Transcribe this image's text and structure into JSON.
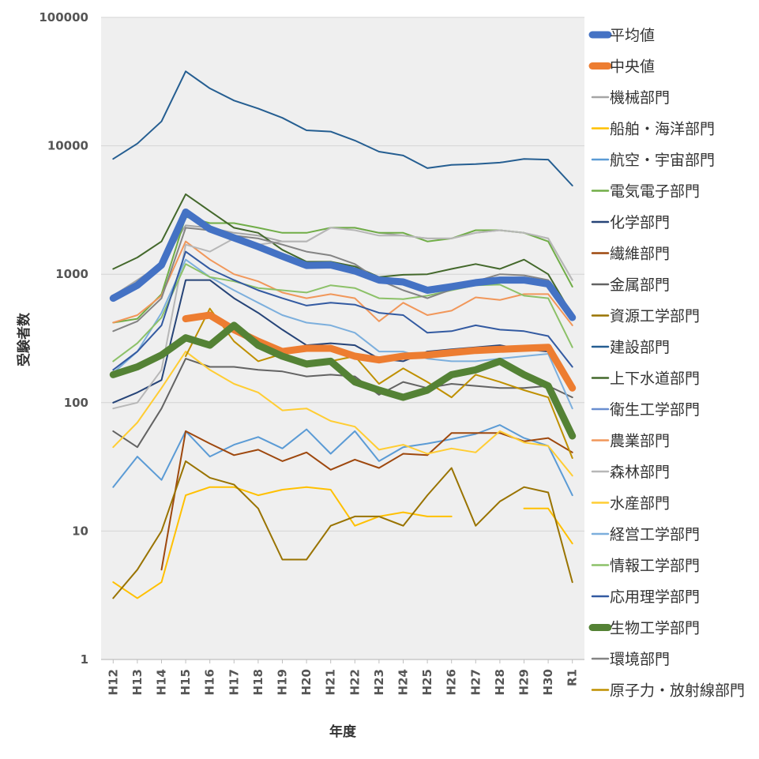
{
  "chart_data": {
    "type": "line",
    "title": "",
    "xlabel": "年度",
    "ylabel": "受験者数",
    "yscale": "log",
    "ylim": [
      1,
      100000
    ],
    "y_ticks": [
      "1",
      "10",
      "100",
      "1000",
      "10000",
      "100000"
    ],
    "grid": true,
    "legend_position": "right",
    "categories": [
      "H12",
      "H13",
      "H14",
      "H15",
      "H16",
      "H17",
      "H18",
      "H19",
      "H20",
      "H21",
      "H22",
      "H23",
      "H24",
      "H25",
      "H26",
      "H27",
      "H28",
      "H29",
      "H30",
      "R1"
    ],
    "series": [
      {
        "name": "平均値",
        "color": "#4472C4",
        "weight": "thick",
        "values": [
          650,
          820,
          1180,
          3050,
          2250,
          1920,
          1640,
          1380,
          1170,
          1180,
          1060,
          900,
          870,
          750,
          800,
          860,
          900,
          900,
          840,
          460
        ]
      },
      {
        "name": "中央値",
        "color": "#ED7D31",
        "weight": "thick",
        "values": [
          null,
          null,
          null,
          450,
          480,
          370,
          300,
          250,
          265,
          265,
          230,
          215,
          230,
          235,
          245,
          255,
          260,
          265,
          270,
          130
        ]
      },
      {
        "name": "機械部門",
        "color": "#A5A5A5",
        "weight": "thin",
        "values": [
          680,
          900,
          1200,
          2400,
          2300,
          2100,
          2000,
          1800,
          1800,
          2300,
          2300,
          2100,
          2000,
          1900,
          1900,
          2100,
          2200,
          2100,
          1900,
          900
        ]
      },
      {
        "name": "船舶・海洋部門",
        "color": "#FFC000",
        "weight": "thin",
        "values": [
          4,
          3,
          4,
          19,
          22,
          22,
          19,
          21,
          22,
          21,
          11,
          13,
          14,
          13,
          13,
          null,
          null,
          15,
          15,
          8
        ]
      },
      {
        "name": "航空・宇宙部門",
        "color": "#5B9BD5",
        "weight": "thin",
        "values": [
          22,
          38,
          25,
          60,
          38,
          47,
          54,
          44,
          62,
          40,
          60,
          35,
          45,
          48,
          52,
          57,
          67,
          53,
          46,
          19
        ]
      },
      {
        "name": "電気電子部門",
        "color": "#70AD47",
        "weight": "thin",
        "values": [
          420,
          450,
          700,
          2800,
          2500,
          2500,
          2300,
          2100,
          2100,
          2300,
          2300,
          2100,
          2100,
          1800,
          1900,
          2200,
          2200,
          2100,
          1800,
          800
        ]
      },
      {
        "name": "化学部門",
        "color": "#264478",
        "weight": "thin",
        "values": [
          100,
          120,
          150,
          900,
          900,
          650,
          500,
          370,
          280,
          290,
          280,
          220,
          210,
          250,
          260,
          270,
          280,
          260,
          250,
          130
        ]
      },
      {
        "name": "繊維部門",
        "color": "#9E480E",
        "weight": "thin",
        "values": [
          null,
          null,
          5,
          60,
          48,
          39,
          43,
          35,
          41,
          30,
          36,
          31,
          40,
          39,
          58,
          58,
          58,
          50,
          53,
          41
        ]
      },
      {
        "name": "金属部門",
        "color": "#636363",
        "weight": "thin",
        "values": [
          60,
          45,
          90,
          220,
          190,
          190,
          180,
          175,
          160,
          165,
          160,
          115,
          145,
          130,
          140,
          135,
          130,
          130,
          135,
          110
        ]
      },
      {
        "name": "資源工学部門",
        "color": "#997300",
        "weight": "thin",
        "values": [
          3,
          5,
          10,
          35,
          26,
          23,
          15,
          6,
          6,
          11,
          13,
          13,
          11,
          19,
          31,
          11,
          17,
          22,
          20,
          4
        ]
      },
      {
        "name": "建設部門",
        "color": "#255E91",
        "weight": "thin",
        "values": [
          7900,
          10400,
          15500,
          38000,
          28000,
          22500,
          19500,
          16500,
          13200,
          12900,
          11000,
          9000,
          8400,
          6700,
          7100,
          7200,
          7400,
          7900,
          7800,
          4900
        ]
      },
      {
        "name": "上下水道部門",
        "color": "#43682B",
        "weight": "thin",
        "values": [
          1100,
          1350,
          1800,
          4200,
          3100,
          2300,
          2100,
          1550,
          1250,
          1250,
          1150,
          950,
          990,
          1000,
          1100,
          1200,
          1100,
          1300,
          1000,
          480
        ]
      },
      {
        "name": "衛生工学部門",
        "color": "#698ED0",
        "weight": "thin",
        "values": [
          null,
          null,
          null,
          null,
          null,
          null,
          null,
          null,
          null,
          null,
          null,
          null,
          null,
          null,
          null,
          null,
          null,
          null,
          null,
          null
        ]
      },
      {
        "name": "農業部門",
        "color": "#F1975A",
        "weight": "thin",
        "values": [
          420,
          480,
          680,
          1800,
          1300,
          1000,
          880,
          720,
          650,
          700,
          650,
          430,
          600,
          480,
          520,
          660,
          630,
          700,
          700,
          400
        ]
      },
      {
        "name": "森林部門",
        "color": "#B7B7B7",
        "weight": "thin",
        "values": [
          90,
          100,
          180,
          1700,
          1500,
          1900,
          1700,
          1800,
          1800,
          2300,
          2200,
          2000,
          2000,
          1900,
          1900,
          2100,
          2200,
          2100,
          1900,
          900
        ]
      },
      {
        "name": "水産部門",
        "color": "#FFCD33",
        "weight": "thin",
        "values": [
          45,
          70,
          130,
          250,
          180,
          140,
          120,
          87,
          90,
          72,
          65,
          43,
          47,
          40,
          44,
          41,
          60,
          49,
          46,
          27
        ]
      },
      {
        "name": "経営工学部門",
        "color": "#7CAFDD",
        "weight": "thin",
        "values": [
          170,
          250,
          500,
          1300,
          950,
          750,
          600,
          480,
          420,
          400,
          350,
          250,
          250,
          220,
          210,
          210,
          220,
          230,
          240,
          90
        ]
      },
      {
        "name": "情報工学部門",
        "color": "#8CC168",
        "weight": "thin",
        "values": [
          210,
          290,
          460,
          1200,
          950,
          880,
          780,
          750,
          720,
          820,
          780,
          650,
          640,
          680,
          750,
          820,
          830,
          680,
          650,
          270
        ]
      },
      {
        "name": "応用理学部門",
        "color": "#335AA1",
        "weight": "thin",
        "values": [
          180,
          250,
          400,
          1500,
          1100,
          900,
          750,
          650,
          570,
          600,
          580,
          500,
          480,
          350,
          360,
          400,
          370,
          360,
          330,
          190
        ]
      },
      {
        "name": "生物工学部門",
        "color": "#548235",
        "weight": "thick",
        "values": [
          165,
          190,
          235,
          320,
          280,
          400,
          280,
          230,
          200,
          210,
          145,
          125,
          110,
          125,
          165,
          180,
          210,
          165,
          135,
          55
        ]
      },
      {
        "name": "環境部門",
        "color": "#848484",
        "weight": "thin",
        "values": [
          360,
          430,
          650,
          2300,
          2200,
          2000,
          1900,
          1700,
          1500,
          1400,
          1200,
          900,
          750,
          650,
          760,
          880,
          1000,
          980,
          900,
          500
        ]
      },
      {
        "name": "原子力・放射線部門",
        "color": "#BF9000",
        "weight": "thin",
        "values": [
          null,
          null,
          null,
          230,
          540,
          300,
          210,
          240,
          190,
          210,
          230,
          140,
          185,
          145,
          110,
          165,
          145,
          125,
          110,
          37
        ]
      }
    ]
  }
}
